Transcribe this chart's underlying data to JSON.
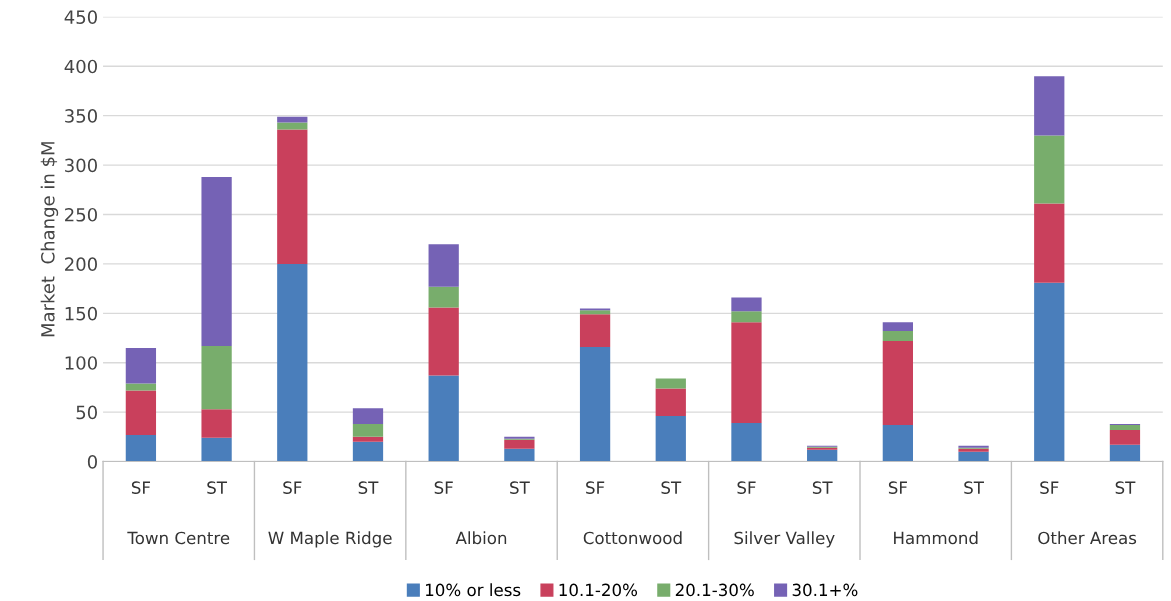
{
  "chart_data": {
    "type": "bar",
    "stacked": true,
    "ylabel": "Market  Change in $M",
    "categories": [
      "SF",
      "ST",
      "SF",
      "ST",
      "SF",
      "ST",
      "SF",
      "ST",
      "SF",
      "ST",
      "SF",
      "ST",
      "SF",
      "ST"
    ],
    "annotations": [
      "Town Centre",
      "W Maple Ridge",
      "Albion",
      "Cottonwood",
      "Silver Valley",
      "Hammond",
      "Other Areas"
    ],
    "series": [
      {
        "name": "10% or less",
        "color": "#4a7ebb",
        "values": [
          27,
          24,
          200,
          20,
          87,
          13,
          116,
          46,
          39,
          12,
          37,
          10,
          181,
          17
        ]
      },
      {
        "name": "10.1-20%",
        "color": "#c9405c",
        "values": [
          45,
          29,
          136,
          5,
          69,
          9,
          33,
          28,
          102,
          2,
          85,
          3,
          80,
          15
        ]
      },
      {
        "name": "20.1-30%",
        "color": "#78ad6c",
        "values": [
          7,
          64,
          7,
          13,
          21,
          1,
          4,
          10,
          11,
          1,
          10,
          1,
          69,
          5
        ]
      },
      {
        "name": "30.1+%",
        "color": "#7562b5",
        "values": [
          36,
          171,
          6,
          16,
          43,
          2,
          2,
          0,
          14,
          1,
          9,
          2,
          60,
          1
        ]
      }
    ],
    "ylim": [
      0,
      450
    ],
    "yticks": [
      0,
      50,
      100,
      150,
      200,
      250,
      300,
      350,
      400,
      450
    ],
    "grid": "y",
    "legend": "bottom"
  }
}
